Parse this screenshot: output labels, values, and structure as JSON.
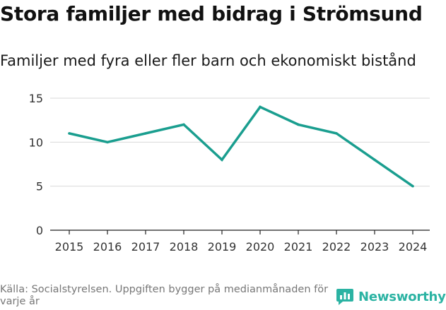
{
  "header": {
    "title": "Stora familjer med bidrag i Strömsund",
    "subtitle": "Familjer med fyra eller fler barn och ekonomiskt bistånd"
  },
  "footer": {
    "source_note": "Källa: Socialstyrelsen. Uppgiften bygger på medianmånaden för varje år",
    "brand_name": "Newsworthy"
  },
  "colors": {
    "line": "#1a9e8f",
    "brand": "#2bb3a3",
    "grid": "#d9d9d9",
    "axis": "#222222"
  },
  "chart_data": {
    "type": "line",
    "title": "Familjer med fyra eller fler barn och ekonomiskt bistånd",
    "xlabel": "",
    "ylabel": "",
    "x": [
      "2015",
      "2016",
      "2017",
      "2018",
      "2019",
      "2020",
      "2021",
      "2022",
      "2023",
      "2024"
    ],
    "series": [
      {
        "name": "Familjer",
        "values": [
          11,
          10,
          11,
          12,
          8,
          14,
          12,
          11,
          8,
          5
        ]
      }
    ],
    "ylim": [
      0,
      15
    ],
    "yticks": [
      0,
      5,
      10,
      15
    ],
    "grid": true,
    "legend": "none"
  }
}
